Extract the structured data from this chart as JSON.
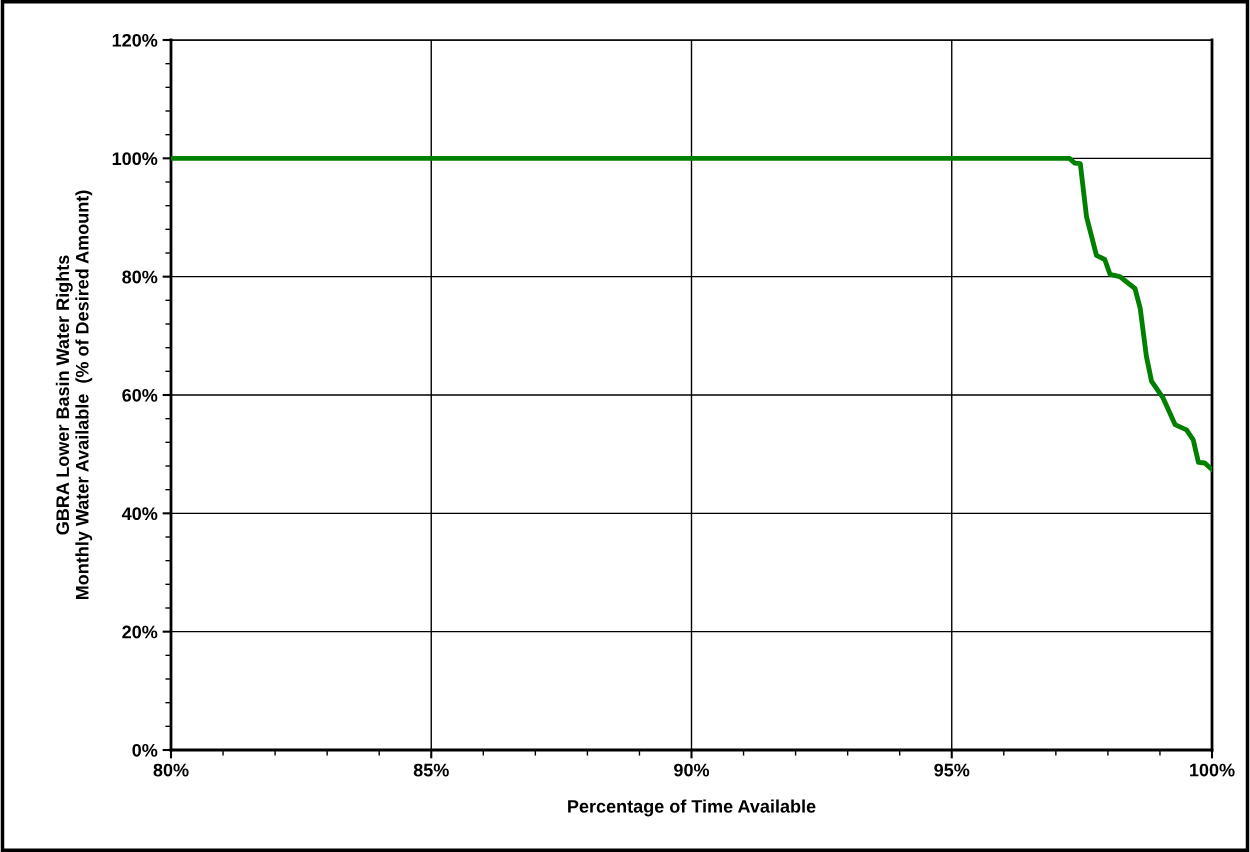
{
  "chart_data": {
    "type": "line",
    "xlabel": "Percentage of Time Available",
    "ylabel": "GBRA Lower Basin Water Rights\nMonthly Water Available  (% of Desired Amount)",
    "series": [
      {
        "color": "#008000",
        "x": [
          80,
          96.7,
          97.26,
          97.36,
          97.47,
          97.59,
          97.78,
          97.94,
          98.04,
          98.23,
          98.52,
          98.62,
          98.74,
          98.84,
          99.06,
          99.29,
          99.51,
          99.64,
          99.74,
          99.86,
          99.99
        ],
        "values": [
          100,
          100,
          100,
          99.2,
          99.1,
          90.1,
          83.6,
          82.9,
          80.4,
          80.0,
          78.0,
          74.7,
          66.5,
          62.3,
          59.5,
          55.0,
          54.1,
          52.4,
          48.6,
          48.5,
          47.5
        ]
      }
    ],
    "xlim": [
      80,
      100
    ],
    "xticks": [
      {
        "value": 80,
        "label": "80%"
      },
      {
        "value": 85,
        "label": "85%"
      },
      {
        "value": 90,
        "label": "90%"
      },
      {
        "value": 95,
        "label": "95%"
      },
      {
        "value": 100,
        "label": "100%"
      }
    ],
    "ylim": [
      0,
      120
    ],
    "yticks": [
      {
        "value": 0,
        "label": "0%"
      },
      {
        "value": 20,
        "label": "20%"
      },
      {
        "value": 40,
        "label": "40%"
      },
      {
        "value": 60,
        "label": "60%"
      },
      {
        "value": 80,
        "label": "80%"
      },
      {
        "value": 100,
        "label": "100%"
      },
      {
        "value": 120,
        "label": "120%"
      }
    ],
    "grid": true,
    "marker": "none",
    "line_style": "solid"
  }
}
